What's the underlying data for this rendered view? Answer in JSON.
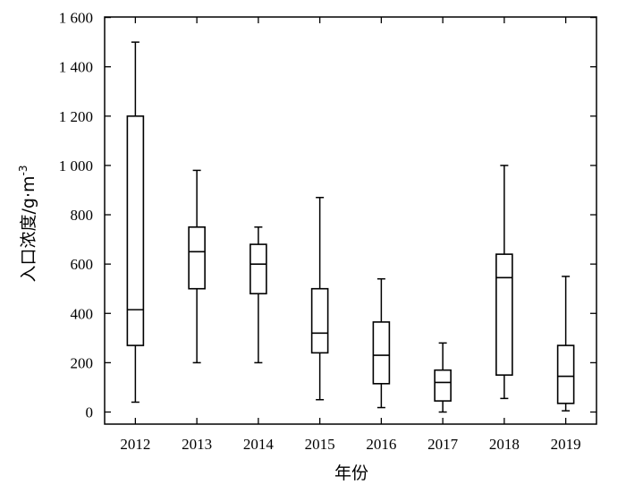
{
  "chart_data": {
    "type": "box",
    "xlabel": "年份",
    "ylabel": "入口浓度/g·m",
    "ylabel_superscript": "-3",
    "ylim": [
      -50,
      1600
    ],
    "yticks": [
      0,
      200,
      400,
      600,
      800,
      1000,
      1200,
      1400,
      1600
    ],
    "ytick_labels": [
      "0",
      "200",
      "400",
      "600",
      "800",
      "1 000",
      "1 200",
      "1 400",
      "1 600"
    ],
    "grid": false,
    "categories": [
      "2012",
      "2013",
      "2014",
      "2015",
      "2016",
      "2017",
      "2018",
      "2019"
    ],
    "boxes": [
      {
        "min": 40,
        "q1": 270,
        "median": 415,
        "q3": 1200,
        "max": 1500
      },
      {
        "min": 200,
        "q1": 500,
        "median": 650,
        "q3": 750,
        "max": 980
      },
      {
        "min": 200,
        "q1": 480,
        "median": 600,
        "q3": 680,
        "max": 750
      },
      {
        "min": 50,
        "q1": 240,
        "median": 320,
        "q3": 500,
        "max": 870
      },
      {
        "min": 18,
        "q1": 115,
        "median": 230,
        "q3": 365,
        "max": 540
      },
      {
        "min": 0,
        "q1": 45,
        "median": 120,
        "q3": 170,
        "max": 280
      },
      {
        "min": 55,
        "q1": 150,
        "median": 545,
        "q3": 640,
        "max": 1000
      },
      {
        "min": 5,
        "q1": 35,
        "median": 145,
        "q3": 270,
        "max": 550
      }
    ]
  }
}
